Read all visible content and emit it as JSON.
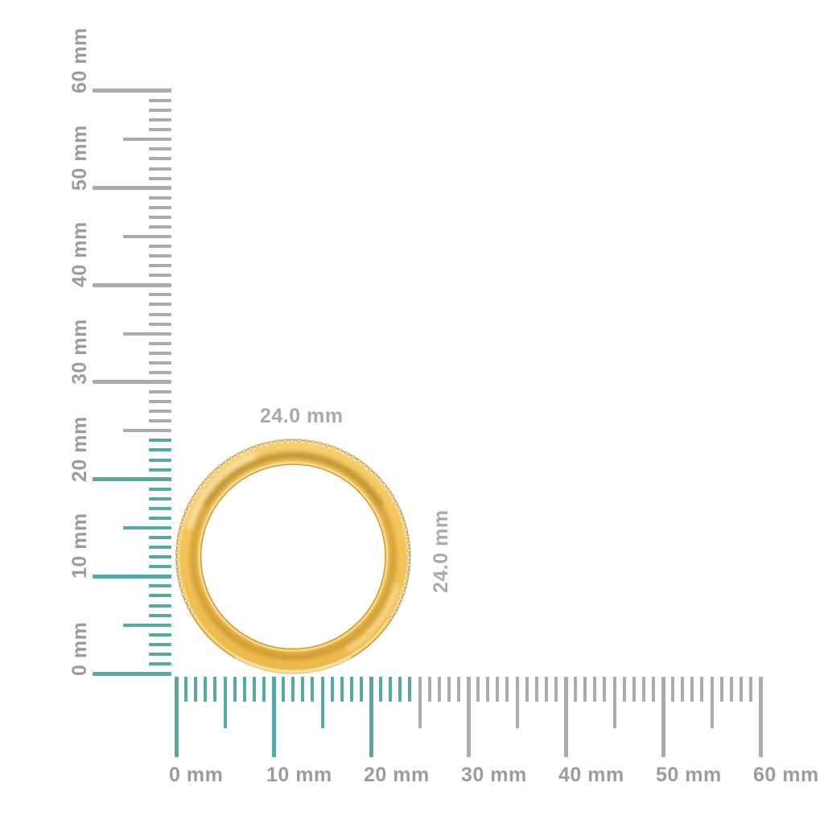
{
  "ring": {
    "name": "gold-ring-with-diamond-accents-profile-view",
    "width_label": "24.0 mm",
    "height_label": "24.0 mm"
  },
  "rulers": {
    "unit": "mm",
    "vertical": {
      "labels": [
        "0 mm",
        "10 mm",
        "20 mm",
        "30 mm",
        "40 mm",
        "50 mm",
        "60 mm"
      ],
      "min_mm": 0,
      "max_mm": 60,
      "major_step_mm": 10,
      "half_step_mm": 5,
      "minor_step_mm": 1,
      "highlight_from_mm": 0,
      "highlight_to_mm": 24
    },
    "horizontal": {
      "labels": [
        "0 mm",
        "10 mm",
        "20 mm",
        "30 mm",
        "40 mm",
        "50 mm",
        "60 mm"
      ],
      "min_mm": 0,
      "max_mm": 60,
      "major_step_mm": 10,
      "half_step_mm": 5,
      "minor_step_mm": 1,
      "highlight_from_mm": 0,
      "highlight_to_mm": 24
    }
  },
  "colors": {
    "highlight_tick": "#55AAA5",
    "default_tick": "#ABABAB",
    "ruler_label_text": "#9C9C9C",
    "annotation_text": "#ABABAB",
    "gold_light": "#F9DD92",
    "gold_mid": "#F3C45A",
    "gold_deep": "#ECB949",
    "gold_edge": "#C69335",
    "background": "#FFFFFF"
  }
}
